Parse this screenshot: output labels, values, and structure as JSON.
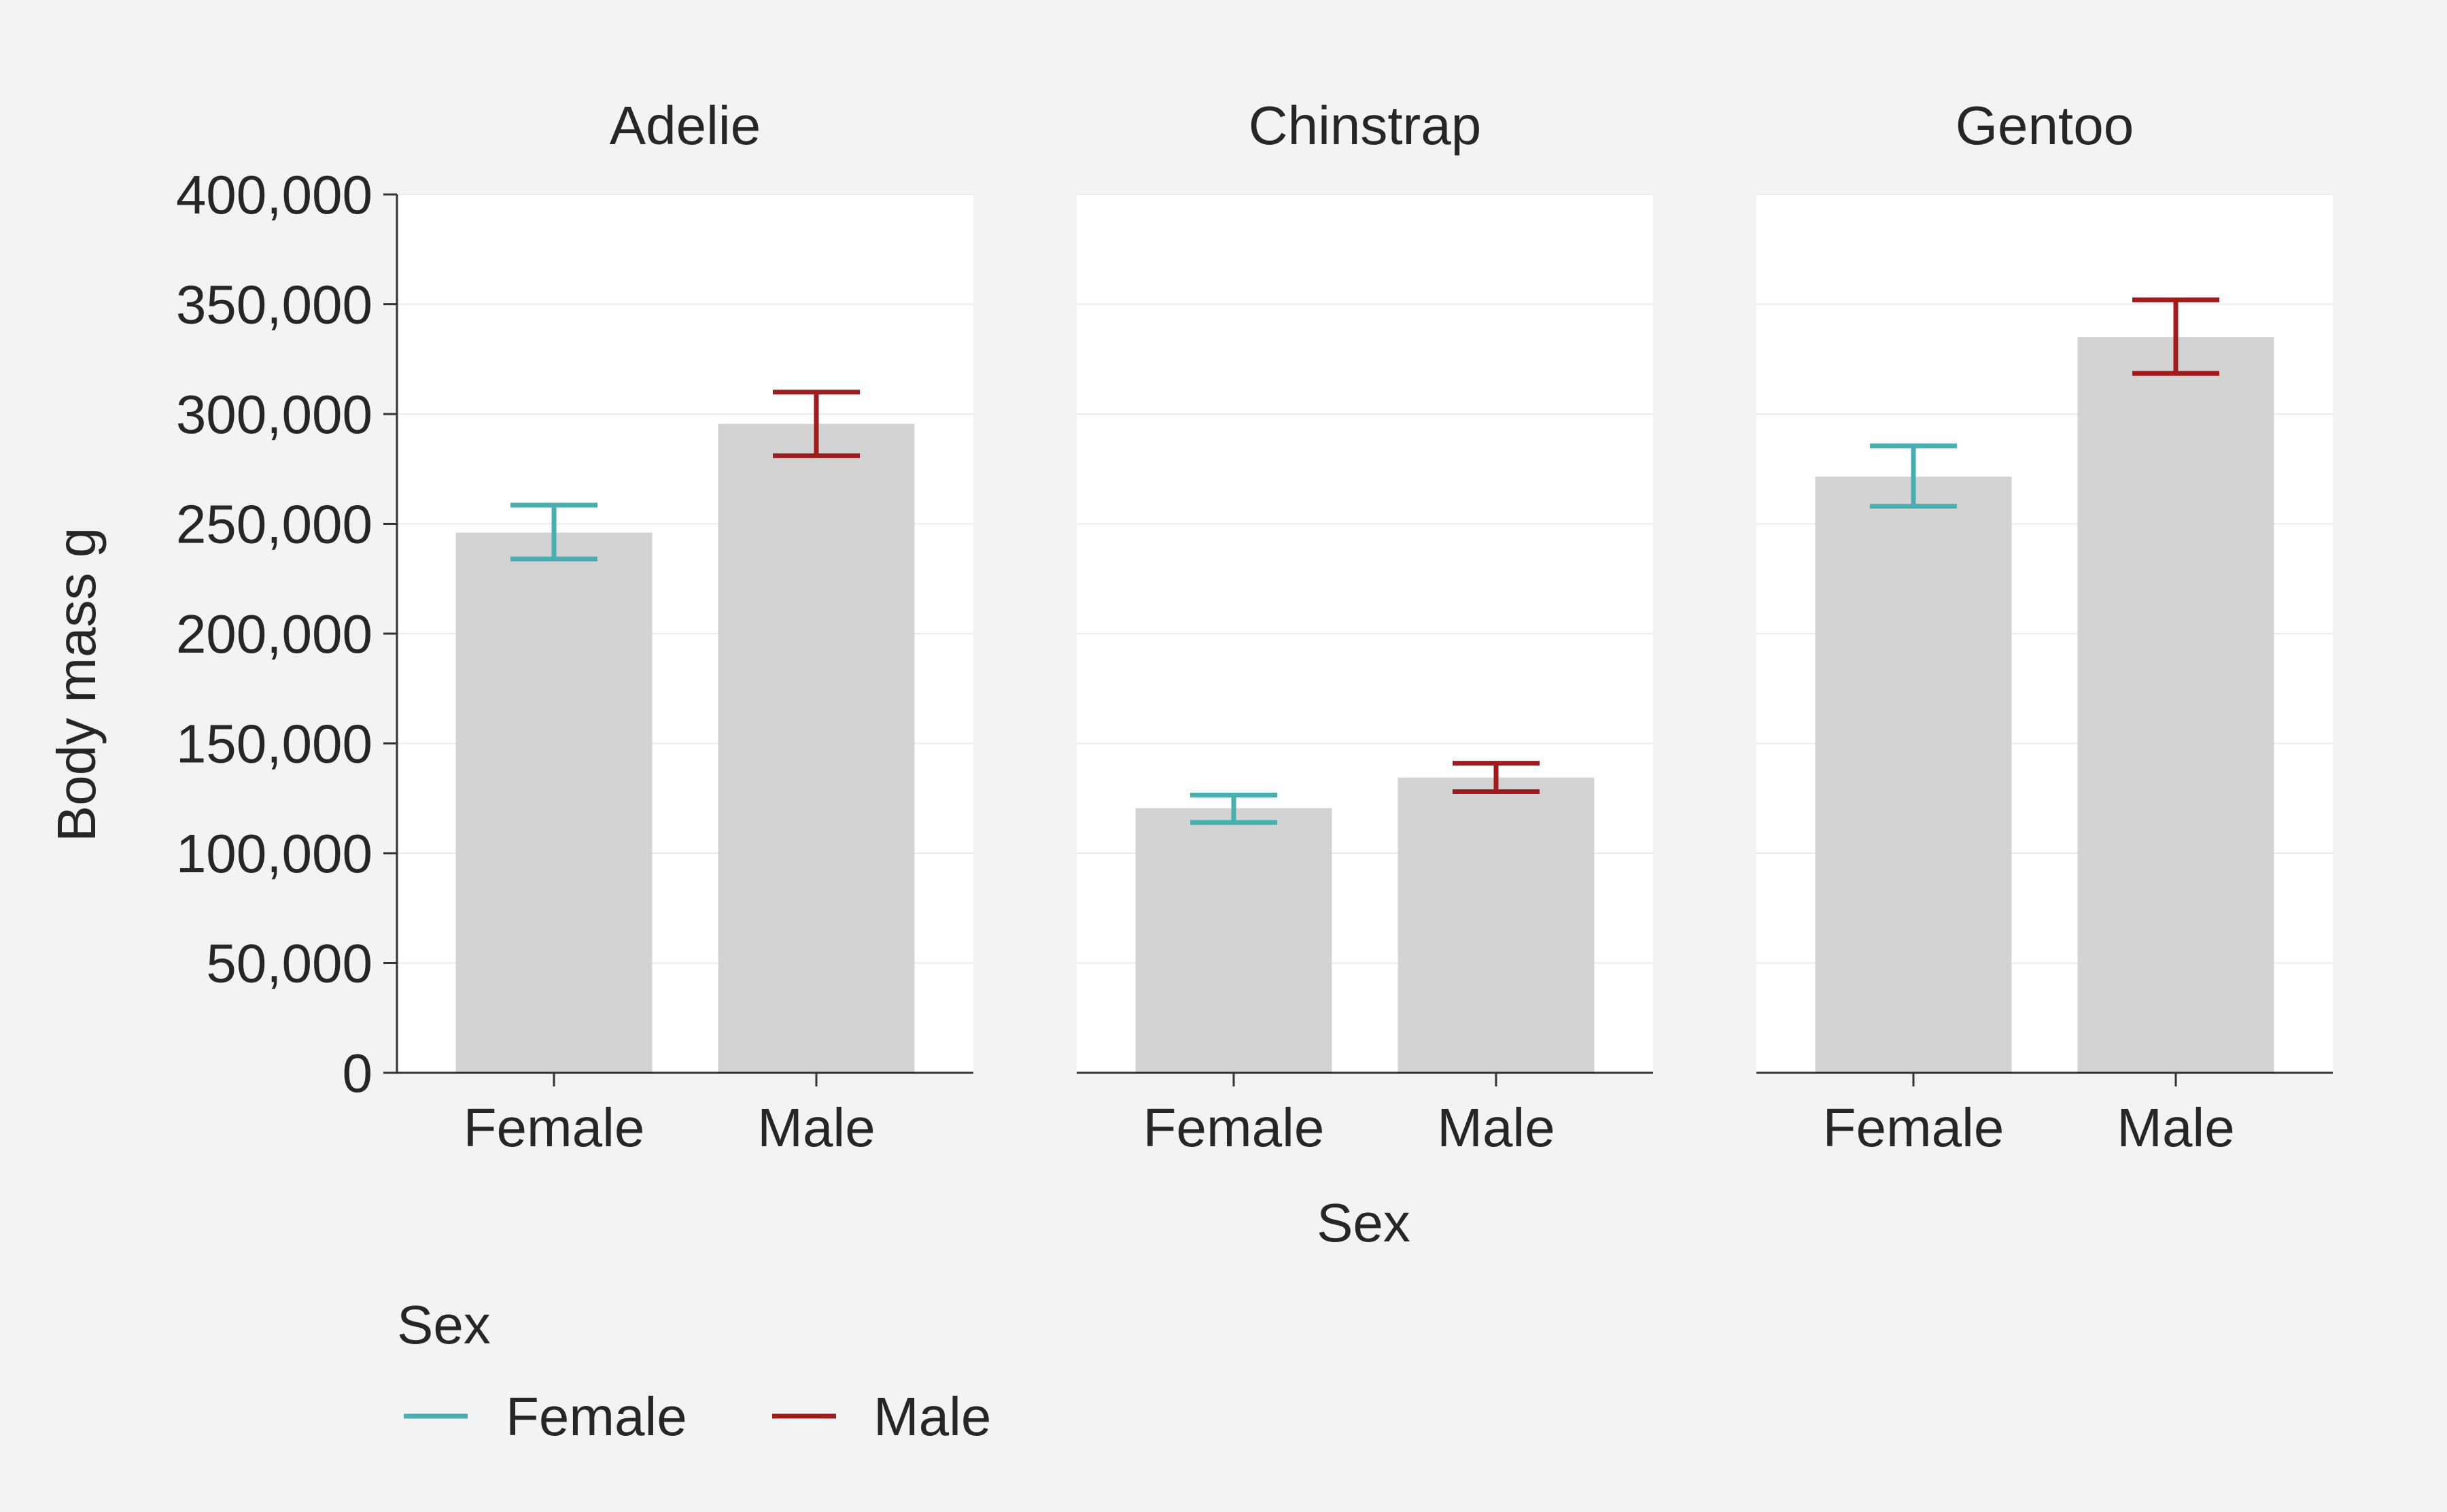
{
  "chart_data": {
    "type": "bar",
    "facet_by": "Species",
    "panels": [
      {
        "title": "Adelie",
        "categories": [
          "Female",
          "Male"
        ],
        "values": [
          246000,
          295500
        ],
        "error_low": [
          234000,
          281000
        ],
        "error_high": [
          258500,
          310000
        ]
      },
      {
        "title": "Chinstrap",
        "categories": [
          "Female",
          "Male"
        ],
        "values": [
          120500,
          134500
        ],
        "error_low": [
          114000,
          128000
        ],
        "error_high": [
          126500,
          141000
        ]
      },
      {
        "title": "Gentoo",
        "categories": [
          "Female",
          "Male"
        ],
        "values": [
          271500,
          335000
        ],
        "error_low": [
          258000,
          318500
        ],
        "error_high": [
          285500,
          352000
        ]
      }
    ],
    "xlabel": "Sex",
    "ylabel": "Body mass g",
    "ylim": [
      0,
      400000
    ],
    "yticks": [
      0,
      50000,
      100000,
      150000,
      200000,
      250000,
      300000,
      350000,
      400000
    ],
    "ytick_labels": [
      "0",
      "50,000",
      "100,000",
      "150,000",
      "200,000",
      "250,000",
      "300,000",
      "350,000",
      "400,000"
    ],
    "grid": true,
    "legend": {
      "title": "Sex",
      "placement": "bottom-left",
      "entries": [
        {
          "label": "Female",
          "color": "#4aaeb0"
        },
        {
          "label": "Male",
          "color": "#a01c1c"
        }
      ]
    },
    "colors": {
      "bar": "#d3d3d3",
      "panel_background": "#ffffff",
      "page_background": "#f2f3f4",
      "grid": "#ebebeb",
      "axis": "#333333"
    }
  }
}
